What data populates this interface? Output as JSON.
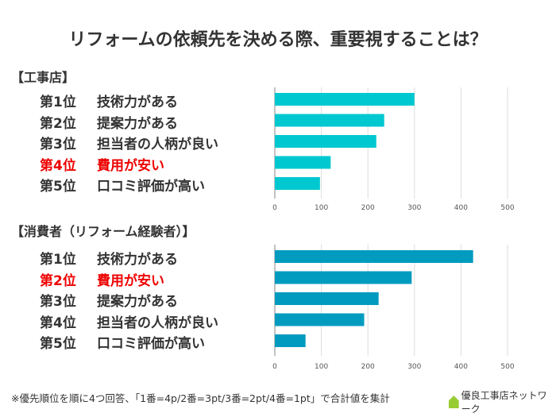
{
  "title": "リフォームの依頼先を決める際、重要視することは？",
  "chart_data": [
    {
      "type": "bar",
      "orientation": "horizontal",
      "section": "【工事店】",
      "ranks": [
        "第1位",
        "第2位",
        "第3位",
        "第4位",
        "第5位"
      ],
      "categories": [
        "技術力がある",
        "提案力がある",
        "担当者の人柄が良い",
        "費用が安い",
        "口コミ評価が高い"
      ],
      "values": [
        300,
        235,
        218,
        120,
        97
      ],
      "highlight_index": 3,
      "xlim": [
        0,
        500
      ],
      "xticks": [
        "0",
        "100",
        "200",
        "300",
        "400",
        "500"
      ],
      "grid": true,
      "color": "#00c8d0"
    },
    {
      "type": "bar",
      "orientation": "horizontal",
      "section": "【消費者（リフォーム経験者）】",
      "ranks": [
        "第1位",
        "第2位",
        "第3位",
        "第4位",
        "第5位"
      ],
      "categories": [
        "技術力がある",
        "費用が安い",
        "提案力がある",
        "担当者の人柄が良い",
        "口コミ評価が高い"
      ],
      "values": [
        426,
        294,
        223,
        192,
        66
      ],
      "highlight_index": 1,
      "xlim": [
        0,
        500
      ],
      "xticks": [
        "0",
        "100",
        "200",
        "300",
        "400",
        "500"
      ],
      "grid": true,
      "color": "#009bbf"
    }
  ],
  "highlight_color": "#e00000",
  "note": "※優先順位を順に4つ回答、「1番=4p/2番=3pt/3番=2pt/4番=1pt」で合計値を集計",
  "logo": "優良工事店ネットワーク"
}
